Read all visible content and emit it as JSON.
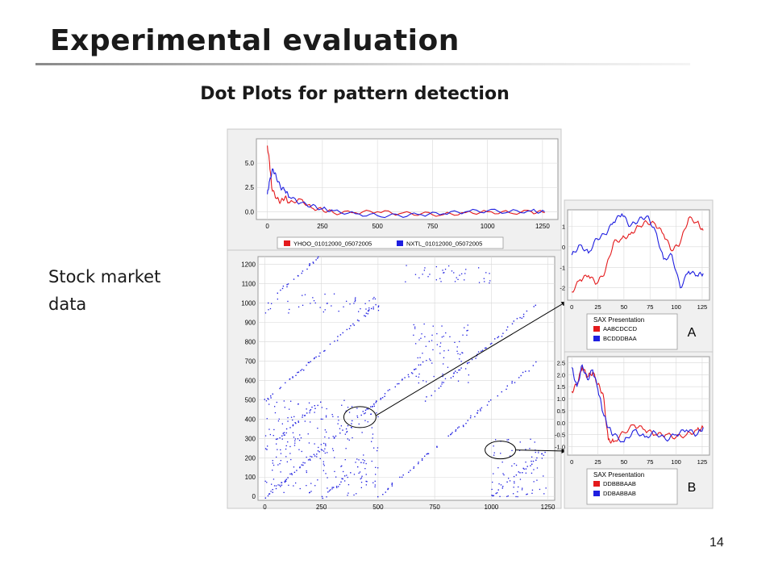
{
  "slide": {
    "title": "Experimental evaluation",
    "subtitle": "Dot Plots for pattern detection",
    "side_text": [
      "Stock market",
      "data"
    ],
    "page_number": "14"
  },
  "colors": {
    "red": "#e41a1c",
    "blue": "#1f1fe0",
    "grid": "#d8d8d8"
  },
  "chart_data": [
    {
      "type": "line",
      "id": "top",
      "xlim": [
        -50,
        1320
      ],
      "ylim": [
        -0.8,
        7.5
      ],
      "xticks": [
        0,
        250,
        500,
        750,
        1000,
        1250
      ],
      "yticks": [
        0.0,
        2.5,
        5.0
      ],
      "ytick_labels": [
        "0.0",
        "2.5",
        "5.0"
      ],
      "legend": "bottom",
      "series": [
        {
          "name": "YHOO_01012000_05072005",
          "color": "red",
          "x": [
            0,
            10,
            20,
            40,
            60,
            80,
            100,
            150,
            200,
            250,
            300,
            400,
            500,
            600,
            700,
            800,
            900,
            1000,
            1100,
            1200,
            1260
          ],
          "y": [
            6.8,
            5.0,
            2.4,
            1.4,
            1.0,
            1.5,
            0.9,
            1.3,
            0.4,
            0.2,
            -0.1,
            -0.1,
            0.0,
            -0.2,
            -0.2,
            -0.3,
            -0.1,
            0.0,
            -0.1,
            0.0,
            -0.1
          ]
        },
        {
          "name": "NXTL_01012000_05072005",
          "color": "blue",
          "x": [
            0,
            10,
            25,
            40,
            60,
            80,
            100,
            150,
            200,
            250,
            300,
            400,
            500,
            600,
            700,
            800,
            900,
            1000,
            1100,
            1200,
            1260
          ],
          "y": [
            1.8,
            3.2,
            4.4,
            3.6,
            2.5,
            2.2,
            1.5,
            0.9,
            0.6,
            0.3,
            0.1,
            -0.2,
            -0.4,
            -0.4,
            -0.3,
            -0.2,
            0.0,
            0.1,
            0.0,
            0.1,
            0.0
          ]
        }
      ]
    },
    {
      "type": "scatter",
      "id": "dotplot",
      "xlim": [
        -30,
        1280
      ],
      "ylim": [
        -20,
        1240
      ],
      "xticks": [
        0,
        250,
        500,
        750,
        1000,
        1250
      ],
      "yticks": [
        0,
        100,
        200,
        300,
        400,
        500,
        600,
        700,
        800,
        900,
        1000,
        1100,
        1200
      ],
      "diagonals": [
        {
          "x": [
            0,
            700
          ],
          "y": [
            0,
            700
          ]
        },
        {
          "x": [
            500,
            1200
          ],
          "y": [
            0,
            700
          ]
        },
        {
          "x": [
            0,
            500
          ],
          "y": [
            500,
            1000
          ]
        },
        {
          "x": [
            700,
            1200
          ],
          "y": [
            500,
            1000
          ]
        },
        {
          "x": [
            1000,
            1250
          ],
          "y": [
            0,
            250
          ]
        },
        {
          "x": [
            0,
            250
          ],
          "y": [
            1000,
            1250
          ]
        },
        {
          "x": [
            250,
            450
          ],
          "y": [
            0,
            200
          ]
        },
        {
          "x": [
            0,
            250
          ],
          "y": [
            250,
            500
          ]
        }
      ],
      "blocks": [
        {
          "x": [
            0,
            250
          ],
          "y": [
            0,
            500
          ]
        },
        {
          "x": [
            250,
            500
          ],
          "y": [
            0,
            500
          ]
        },
        {
          "x": [
            1000,
            1250
          ],
          "y": [
            0,
            300
          ]
        },
        {
          "x": [
            650,
            900
          ],
          "y": [
            580,
            900
          ]
        },
        {
          "x": [
            0,
            500
          ],
          "y": [
            950,
            1050
          ]
        },
        {
          "x": [
            600,
            1000
          ],
          "y": [
            1100,
            1200
          ]
        }
      ],
      "highlights": [
        {
          "x": 420,
          "y": 410,
          "label": "A"
        },
        {
          "x": 1040,
          "y": 240,
          "label": "B"
        }
      ]
    },
    {
      "type": "line",
      "id": "A",
      "xlim": [
        -4,
        132
      ],
      "ylim": [
        -2.6,
        1.8
      ],
      "xticks": [
        0,
        25,
        50,
        75,
        100,
        125
      ],
      "yticks": [
        -2,
        -1,
        0,
        1
      ],
      "ytick_labels": [
        "-2",
        "-1",
        "0",
        "1"
      ],
      "legend": "bottom",
      "legend_title": "SAX Presentation",
      "panel_letter": "A",
      "series": [
        {
          "name": "AABCDCCD",
          "color": "red",
          "x": [
            0,
            8,
            16,
            24,
            32,
            40,
            48,
            56,
            64,
            72,
            80,
            88,
            96,
            104,
            112,
            120,
            126
          ],
          "y": [
            -2.2,
            -1.6,
            -1.4,
            -1.8,
            -1.2,
            0.2,
            0.4,
            0.6,
            1.0,
            1.2,
            1.1,
            0.6,
            -0.2,
            0.2,
            1.4,
            1.2,
            0.8
          ]
        },
        {
          "name": "BCDDDBAA",
          "color": "blue",
          "x": [
            0,
            8,
            16,
            24,
            32,
            40,
            48,
            56,
            64,
            72,
            80,
            88,
            96,
            104,
            112,
            120,
            126
          ],
          "y": [
            -0.4,
            0.1,
            -0.3,
            0.4,
            0.6,
            1.2,
            1.6,
            1.0,
            1.3,
            1.5,
            0.8,
            -0.6,
            -0.4,
            -2.0,
            -1.2,
            -1.4,
            -1.3
          ]
        }
      ]
    },
    {
      "type": "line",
      "id": "B",
      "xlim": [
        -4,
        132
      ],
      "ylim": [
        -1.35,
        2.75
      ],
      "xticks": [
        0,
        25,
        50,
        75,
        100,
        125
      ],
      "yticks": [
        -1.0,
        -0.5,
        0.0,
        0.5,
        1.0,
        1.5,
        2.0,
        2.5
      ],
      "ytick_labels": [
        "-1.0",
        "-0.5",
        "0.0",
        "0.5",
        "1.0",
        "1.5",
        "2.0",
        "2.5"
      ],
      "legend": "bottom",
      "legend_title": "SAX Presentation",
      "panel_letter": "B",
      "series": [
        {
          "name": "DDBBBAAB",
          "color": "red",
          "x": [
            0,
            5,
            10,
            15,
            20,
            25,
            30,
            35,
            40,
            50,
            60,
            70,
            80,
            90,
            100,
            110,
            120,
            126
          ],
          "y": [
            1.3,
            1.6,
            2.3,
            1.9,
            2.1,
            1.6,
            1.2,
            -0.7,
            -0.8,
            -0.4,
            -0.1,
            -0.3,
            -0.5,
            -0.5,
            -0.6,
            -0.5,
            -0.3,
            -0.2
          ]
        },
        {
          "name": "DDBABBAB",
          "color": "blue",
          "x": [
            0,
            5,
            10,
            15,
            20,
            25,
            30,
            35,
            40,
            50,
            60,
            70,
            80,
            90,
            100,
            110,
            120,
            126
          ],
          "y": [
            2.3,
            1.5,
            2.4,
            1.8,
            2.2,
            1.4,
            0.4,
            -0.2,
            -0.5,
            -0.8,
            -0.3,
            -0.6,
            -0.4,
            -0.7,
            -0.5,
            -0.3,
            -0.5,
            -0.2
          ]
        }
      ]
    }
  ]
}
